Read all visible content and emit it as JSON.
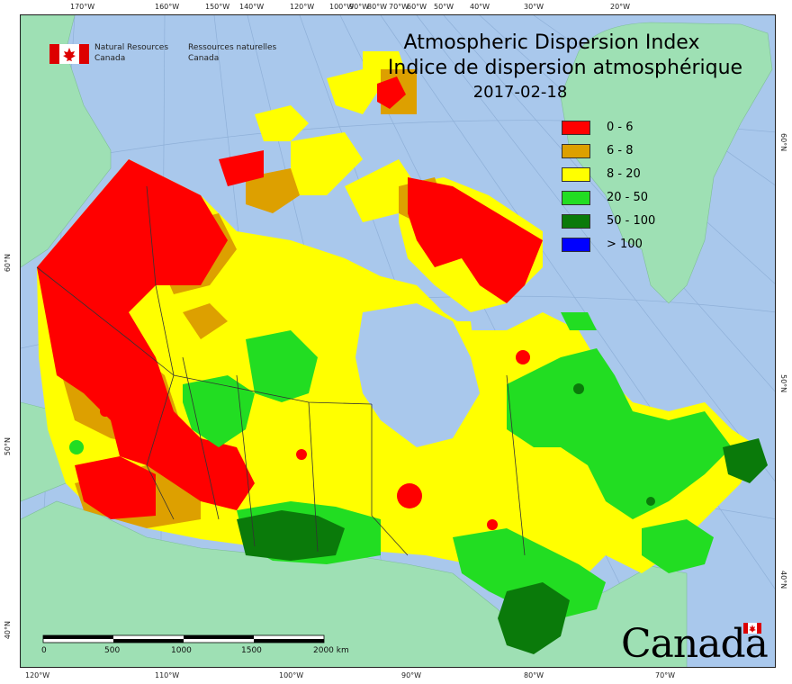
{
  "map": {
    "title_en": "Atmospheric Dispersion Index",
    "title_fr": "Indice de dispersion atmosphérique",
    "date": "2017-02-18",
    "agency_en_1": "Natural Resources",
    "agency_en_2": "Canada",
    "agency_fr_1": "Ressources naturelles",
    "agency_fr_2": "Canada",
    "wordmark": "Canada",
    "legend": [
      {
        "label": "0 - 6",
        "color": "#ff0000"
      },
      {
        "label": "6 - 8",
        "color": "#dda000"
      },
      {
        "label": "8 - 20",
        "color": "#ffff00"
      },
      {
        "label": "20 - 50",
        "color": "#22dd22"
      },
      {
        "label": "50 - 100",
        "color": "#0a7a0a"
      },
      {
        "label": "> 100",
        "color": "#0000ff"
      }
    ],
    "top_ticks": [
      "170°W",
      "160°W",
      "150°W",
      "140°W",
      "120°W",
      "100°W",
      "90°W",
      "80°W",
      "70°W",
      "60°W",
      "50°W",
      "40°W",
      "30°W",
      "20°W"
    ],
    "bottom_ticks": [
      "120°W",
      "110°W",
      "100°W",
      "90°W",
      "80°W",
      "70°W"
    ],
    "left_ticks": [
      "60°N",
      "50°N",
      "40°N"
    ],
    "right_ticks": [
      "60°N",
      "50°N",
      "40°N"
    ],
    "scale_labels": [
      "0",
      "500",
      "1000",
      "1500",
      "2000 km"
    ],
    "colors": {
      "ocean": "#a9c8ec",
      "land_outside": "#9ee0b4",
      "boundary": "#333333"
    }
  }
}
